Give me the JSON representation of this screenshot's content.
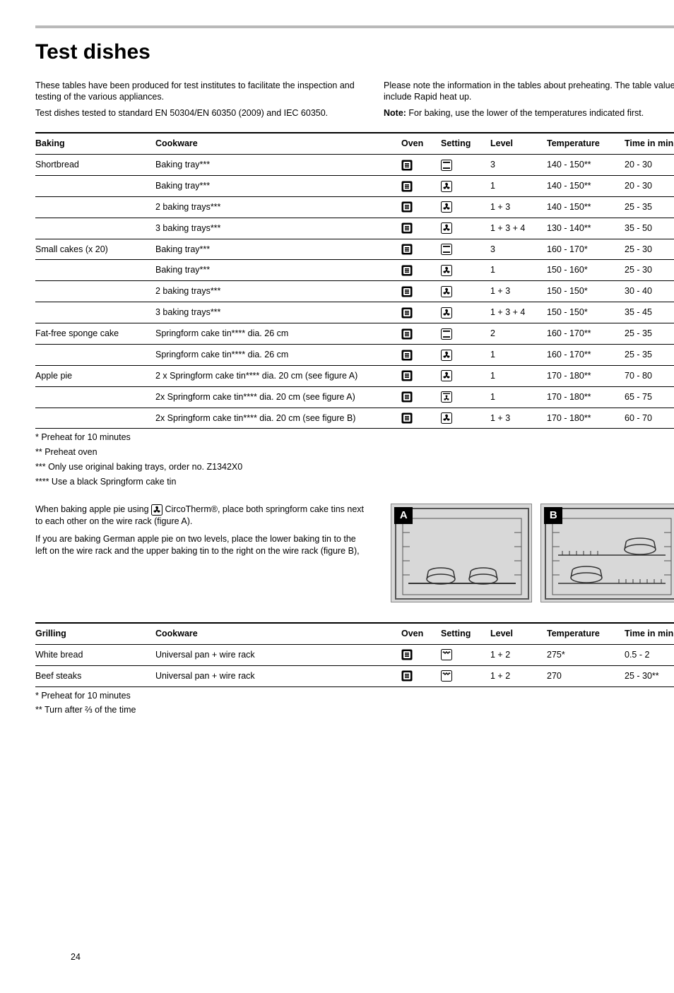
{
  "title": "Test dishes",
  "intro_left": [
    "These tables have been produced for test institutes to facilitate the inspection and testing of the various appliances.",
    "Test dishes tested to standard EN 50304/EN 60350 (2009) and IEC 60350."
  ],
  "intro_right_plain": "Please note the information in the tables about preheating. The table values do not include Rapid heat up.",
  "intro_right_note_label": "Note:",
  "intro_right_note_text": " For baking, use the lower of the temperatures indicated first.",
  "baking_table": {
    "headers": [
      "Baking",
      "Cookware",
      "Oven",
      "Setting",
      "Level",
      "Temperature",
      "Time in minutes"
    ],
    "rows": [
      {
        "group": "Shortbread",
        "baking": "Shortbread",
        "cookware": "Baking tray***",
        "oven": "main",
        "setting": "topbottom",
        "level": "3",
        "temp": "140 - 150**",
        "time": "20 - 30"
      },
      {
        "group": "Shortbread",
        "baking": "",
        "cookware": "Baking tray***",
        "oven": "main",
        "setting": "fan",
        "level": "1",
        "temp": "140 - 150**",
        "time": "20 - 30"
      },
      {
        "group": "Shortbread",
        "baking": "",
        "cookware": "2 baking trays***",
        "oven": "main",
        "setting": "fan",
        "level": "1 + 3",
        "temp": "140 - 150**",
        "time": "25 - 35"
      },
      {
        "group": "Shortbread",
        "baking": "",
        "cookware": "3 baking trays***",
        "oven": "main",
        "setting": "fan",
        "level": "1 + 3 + 4",
        "temp": "130 - 140**",
        "time": "35 - 50"
      },
      {
        "group": "Small cakes (x 20)",
        "baking": "Small cakes (x 20)",
        "cookware": "Baking tray***",
        "oven": "main",
        "setting": "topbottom",
        "level": "3",
        "temp": "160 - 170*",
        "time": "25 - 30"
      },
      {
        "group": "Small cakes (x 20)",
        "baking": "",
        "cookware": "Baking tray***",
        "oven": "main",
        "setting": "fan",
        "level": "1",
        "temp": "150 - 160*",
        "time": "25 - 30"
      },
      {
        "group": "Small cakes (x 20)",
        "baking": "",
        "cookware": "2 baking trays***",
        "oven": "main",
        "setting": "fan",
        "level": "1 + 3",
        "temp": "150 - 150*",
        "time": "30 - 40"
      },
      {
        "group": "Small cakes (x 20)",
        "baking": "",
        "cookware": "3 baking trays***",
        "oven": "main",
        "setting": "fan",
        "level": "1 + 3 + 4",
        "temp": "150 - 150*",
        "time": "35 - 45"
      },
      {
        "group": "Fat-free sponge cake",
        "baking": "Fat-free sponge cake",
        "cookware": "Springform cake tin**** dia. 26 cm",
        "oven": "main",
        "setting": "topbottom",
        "level": "2",
        "temp": "160 - 170**",
        "time": "25 - 35"
      },
      {
        "group": "Fat-free sponge cake",
        "baking": "",
        "cookware": "Springform cake tin**** dia. 26 cm",
        "oven": "main",
        "setting": "fan",
        "level": "1",
        "temp": "160 - 170**",
        "time": "25 - 35"
      },
      {
        "group": "Apple pie",
        "baking": "Apple pie",
        "cookware": "2 x Springform cake tin**** dia. 20 cm (see figure A)",
        "oven": "main",
        "setting": "fan",
        "level": "1",
        "temp": "170 - 180**",
        "time": "70 - 80"
      },
      {
        "group": "Apple pie",
        "baking": "",
        "cookware": "2x Springform cake tin**** dia. 20 cm (see figure A)",
        "oven": "main",
        "setting": "fanplus",
        "level": "1",
        "temp": "170 - 180**",
        "time": "65 - 75"
      },
      {
        "group": "Apple pie",
        "baking": "",
        "cookware": "2x Springform cake tin**** dia. 20 cm (see figure B)",
        "oven": "main",
        "setting": "fan",
        "level": "1 + 3",
        "temp": "170 - 180**",
        "time": "60 - 70"
      }
    ]
  },
  "baking_footnotes": [
    "* Preheat for 10 minutes",
    "** Preheat oven",
    "*** Only use original baking trays, order no. Z1342X0",
    "**** Use a black Springform cake tin"
  ],
  "mid_text": [
    "When baking apple pie using  CircoTherm®, place both springform cake tins next to each other on the wire rack (figure A).",
    "If you are baking German apple pie on two levels, place the lower baking tin to the left on the wire rack and the upper baking tin to the right on the wire rack (figure B),"
  ],
  "mid_text_icon_sentence_prefix": "When baking apple pie using ",
  "mid_text_icon_sentence_suffix": " CircoTherm®, place both springform cake tins next to each other on the wire rack (figure A).",
  "figure_labels": {
    "a": "A",
    "b": "B"
  },
  "grilling_table": {
    "headers": [
      "Grilling",
      "Cookware",
      "Oven",
      "Setting",
      "Level",
      "Temperature",
      "Time in minutes"
    ],
    "rows": [
      {
        "grilling": "White bread",
        "cookware": "Universal pan + wire rack",
        "oven": "main",
        "setting": "grill",
        "level": "1 + 2",
        "temp": "275*",
        "time": "0.5 - 2"
      },
      {
        "grilling": "Beef steaks",
        "cookware": "Universal pan + wire rack",
        "oven": "main",
        "setting": "grill",
        "level": "1 + 2",
        "temp": "270",
        "time": "25 - 30**"
      }
    ]
  },
  "grilling_footnotes": [
    "* Preheat for 10 minutes",
    "** Turn after ⅔ of the time"
  ],
  "page_number": "24",
  "colors": {
    "rule": "#b9b9b9",
    "text": "#000000",
    "bg": "#ffffff",
    "fig_bg": "#d8d8d8"
  }
}
